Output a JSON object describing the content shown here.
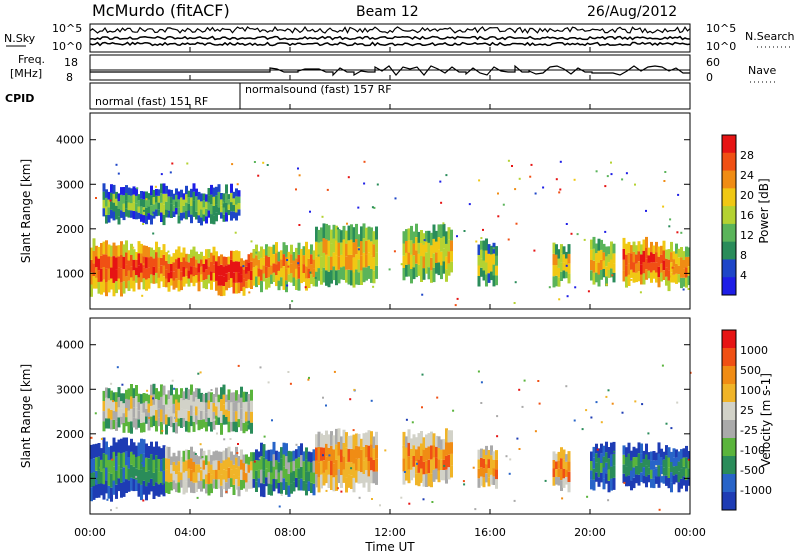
{
  "header": {
    "station": "McMurdo (fitACF)",
    "beam": "Beam 12",
    "date": "26/Aug/2012"
  },
  "strip": {
    "nsky_label": "N.Sky",
    "nsearch_label": "N.Search",
    "nsky_ticks": [
      "10^5",
      "10^0"
    ],
    "nsearch_ticks": [
      "10^5",
      "10^0"
    ],
    "freq_label_line1": "Freq.",
    "freq_label_line2": "[MHz]",
    "freq_ticks": [
      "18",
      "8"
    ],
    "nave_label": "Nave",
    "nave_ticks": [
      "60",
      "0"
    ],
    "cpid_label": "CPID",
    "cpid_modes": [
      "normal (fast) 151 RF",
      "normalsound (fast) 157 RF"
    ],
    "cpid_switch_hour": 6.0
  },
  "time_axis": {
    "label": "Time UT",
    "ticks": [
      "00:00",
      "04:00",
      "08:00",
      "12:00",
      "16:00",
      "20:00",
      "00:00"
    ],
    "range_hours": [
      0,
      24
    ]
  },
  "colors": {
    "power": [
      "#1e1ee6",
      "#1e46c8",
      "#2a8c5a",
      "#5ab45a",
      "#b4d232",
      "#f0c814",
      "#f08c14",
      "#f05014",
      "#e61414"
    ],
    "velocity": [
      "#1e3cb4",
      "#2864c8",
      "#2a8c5a",
      "#5ab43c",
      "#aaaaaa",
      "#d2d2c8",
      "#f0b428",
      "#f08c14",
      "#f05014",
      "#e61414"
    ]
  },
  "chart_data": [
    {
      "type": "heatmap",
      "panel": "power",
      "xlabel": "",
      "ylabel": "Slant Range [km]",
      "yticks": [
        "1000",
        "2000",
        "3000",
        "4000"
      ],
      "ylim": [
        200,
        4600
      ],
      "xlim_hours": [
        0,
        24
      ],
      "colorbar_label": "Power [dB]",
      "colorbar_ticks": [
        "4",
        "8",
        "12",
        "16",
        "20",
        "24",
        "28"
      ],
      "colorbar_range": [
        0,
        32
      ],
      "regions": [
        {
          "t": [
            0.0,
            1.5
          ],
          "r": [
            600,
            1700
          ],
          "level": 7
        },
        {
          "t": [
            1.5,
            3.0
          ],
          "r": [
            700,
            1600
          ],
          "level": 7
        },
        {
          "t": [
            3.0,
            5.0
          ],
          "r": [
            700,
            1500
          ],
          "level": 7
        },
        {
          "t": [
            5.0,
            6.5
          ],
          "r": [
            600,
            1400
          ],
          "level": 8
        },
        {
          "t": [
            6.5,
            9.0
          ],
          "r": [
            700,
            1600
          ],
          "level": 6
        },
        {
          "t": [
            9.0,
            11.5
          ],
          "r": [
            800,
            2000
          ],
          "level": 5
        },
        {
          "t": [
            12.5,
            14.5
          ],
          "r": [
            900,
            2000
          ],
          "level": 5
        },
        {
          "t": [
            15.5,
            16.3
          ],
          "r": [
            800,
            1700
          ],
          "level": 4
        },
        {
          "t": [
            18.5,
            19.2
          ],
          "r": [
            800,
            1600
          ],
          "level": 5
        },
        {
          "t": [
            20.0,
            21.0
          ],
          "r": [
            800,
            1700
          ],
          "level": 5
        },
        {
          "t": [
            21.3,
            23.0
          ],
          "r": [
            800,
            1700
          ],
          "level": 7
        },
        {
          "t": [
            23.0,
            24.0
          ],
          "r": [
            700,
            1600
          ],
          "level": 6
        },
        {
          "t": [
            0.5,
            6.0
          ],
          "r": [
            2200,
            2900
          ],
          "level": 3
        }
      ]
    },
    {
      "type": "heatmap",
      "panel": "velocity",
      "xlabel": "Time UT",
      "ylabel": "Slant Range [km]",
      "yticks": [
        "1000",
        "2000",
        "3000",
        "4000"
      ],
      "ylim": [
        200,
        4600
      ],
      "xlim_hours": [
        0,
        24
      ],
      "colorbar_label": "Velocity [m s-1]",
      "colorbar_ticks": [
        "1000",
        "500",
        "100",
        "25",
        "-25",
        "-100",
        "-500",
        "-1000"
      ],
      "regions": [
        {
          "t": [
            0.0,
            3.0
          ],
          "r": [
            600,
            1800
          ],
          "level": 2
        },
        {
          "t": [
            3.0,
            6.5
          ],
          "r": [
            700,
            1600
          ],
          "level": 6
        },
        {
          "t": [
            6.5,
            9.0
          ],
          "r": [
            700,
            1700
          ],
          "level": 3
        },
        {
          "t": [
            9.0,
            11.5
          ],
          "r": [
            800,
            2000
          ],
          "level": 7
        },
        {
          "t": [
            12.5,
            14.5
          ],
          "r": [
            900,
            2000
          ],
          "level": 7
        },
        {
          "t": [
            15.5,
            16.3
          ],
          "r": [
            800,
            1700
          ],
          "level": 7
        },
        {
          "t": [
            18.5,
            19.2
          ],
          "r": [
            800,
            1600
          ],
          "level": 7
        },
        {
          "t": [
            20.0,
            21.0
          ],
          "r": [
            800,
            1700
          ],
          "level": 2
        },
        {
          "t": [
            21.3,
            24.0
          ],
          "r": [
            800,
            1700
          ],
          "level": 2
        },
        {
          "t": [
            0.5,
            6.5
          ],
          "r": [
            2100,
            3000
          ],
          "level": 5
        }
      ]
    }
  ]
}
